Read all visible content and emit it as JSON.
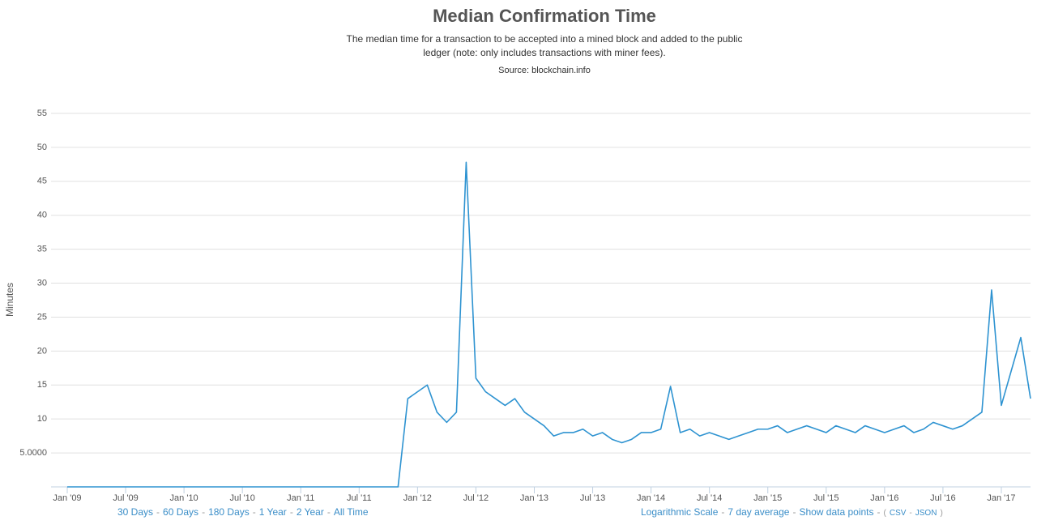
{
  "chart_data": {
    "type": "line",
    "title": "Median Confirmation Time",
    "subtitle": [
      "The median time for a transaction to be accepted into a mined block and added to the public",
      "ledger (note: only includes transactions with miner fees)."
    ],
    "source": "Source: blockchain.info",
    "y_label": "Minutes",
    "color": "#2e93d1",
    "grid": true,
    "x": [
      "2009-01",
      "2009-02",
      "2009-03",
      "2009-04",
      "2009-05",
      "2009-06",
      "2009-07",
      "2009-08",
      "2009-09",
      "2009-10",
      "2009-11",
      "2009-12",
      "2010-01",
      "2010-02",
      "2010-03",
      "2010-04",
      "2010-05",
      "2010-06",
      "2010-07",
      "2010-08",
      "2010-09",
      "2010-10",
      "2010-11",
      "2010-12",
      "2011-01",
      "2011-02",
      "2011-03",
      "2011-04",
      "2011-05",
      "2011-06",
      "2011-07",
      "2011-08",
      "2011-09",
      "2011-10",
      "2011-11",
      "2011-12",
      "2012-01",
      "2012-02",
      "2012-03",
      "2012-04",
      "2012-05",
      "2012-06",
      "2012-07",
      "2012-08",
      "2012-09",
      "2012-10",
      "2012-11",
      "2012-12",
      "2013-01",
      "2013-02",
      "2013-03",
      "2013-04",
      "2013-05",
      "2013-06",
      "2013-07",
      "2013-08",
      "2013-09",
      "2013-10",
      "2013-11",
      "2013-12",
      "2014-01",
      "2014-02",
      "2014-03",
      "2014-04",
      "2014-05",
      "2014-06",
      "2014-07",
      "2014-08",
      "2014-09",
      "2014-10",
      "2014-11",
      "2014-12",
      "2015-01",
      "2015-02",
      "2015-03",
      "2015-04",
      "2015-05",
      "2015-06",
      "2015-07",
      "2015-08",
      "2015-09",
      "2015-10",
      "2015-11",
      "2015-12",
      "2016-01",
      "2016-02",
      "2016-03",
      "2016-04",
      "2016-05",
      "2016-06",
      "2016-07",
      "2016-08",
      "2016-09",
      "2016-10",
      "2016-11",
      "2016-12",
      "2017-01",
      "2017-02",
      "2017-03",
      "2017-04"
    ],
    "values": [
      0,
      0,
      0,
      0,
      0,
      0,
      0,
      0,
      0,
      0,
      0,
      0,
      0,
      0,
      0,
      0,
      0,
      0,
      0,
      0,
      0,
      0,
      0,
      0,
      0,
      0,
      0,
      0,
      0,
      0,
      0,
      0,
      0,
      0,
      0,
      13,
      14,
      15,
      11,
      9.5,
      11,
      47.8,
      16,
      14,
      13,
      12,
      13,
      11,
      10,
      9,
      7.5,
      8,
      8,
      8.5,
      7.5,
      8,
      7,
      6.5,
      7,
      8,
      8,
      8.5,
      14.8,
      8,
      8.5,
      7.5,
      8,
      7.5,
      7,
      7.5,
      8,
      8.5,
      8.5,
      9,
      8,
      8.5,
      9,
      8.5,
      8,
      9,
      8.5,
      8,
      9,
      8.5,
      8,
      8.5,
      9,
      8,
      8.5,
      9.5,
      9,
      8.5,
      9,
      10,
      11,
      29,
      12,
      17,
      22,
      13
    ],
    "xlim": [
      "2009-01",
      "2017-04"
    ],
    "xticks": [
      {
        "value": "2009-01",
        "label": "Jan '09"
      },
      {
        "value": "2009-07",
        "label": "Jul '09"
      },
      {
        "value": "2010-01",
        "label": "Jan '10"
      },
      {
        "value": "2010-07",
        "label": "Jul '10"
      },
      {
        "value": "2011-01",
        "label": "Jan '11"
      },
      {
        "value": "2011-07",
        "label": "Jul '11"
      },
      {
        "value": "2012-01",
        "label": "Jan '12"
      },
      {
        "value": "2012-07",
        "label": "Jul '12"
      },
      {
        "value": "2013-01",
        "label": "Jan '13"
      },
      {
        "value": "2013-07",
        "label": "Jul '13"
      },
      {
        "value": "2014-01",
        "label": "Jan '14"
      },
      {
        "value": "2014-07",
        "label": "Jul '14"
      },
      {
        "value": "2015-01",
        "label": "Jan '15"
      },
      {
        "value": "2015-07",
        "label": "Jul '15"
      },
      {
        "value": "2016-01",
        "label": "Jan '16"
      },
      {
        "value": "2016-07",
        "label": "Jul '16"
      },
      {
        "value": "2017-01",
        "label": "Jan '17"
      }
    ],
    "ylim": [
      0,
      55
    ],
    "yticks": [
      {
        "value": 5,
        "label": "5.0000"
      },
      10,
      15,
      20,
      25,
      30,
      35,
      40,
      45,
      50,
      55
    ],
    "range_links": [
      "30 Days",
      "60 Days",
      "180 Days",
      "1 Year",
      "2 Year",
      "All Time"
    ],
    "option_links": [
      "Logarithmic Scale",
      "7 day average",
      "Show data points"
    ],
    "separator": "-",
    "export": {
      "open": "(",
      "links": [
        "CSV",
        "JSON"
      ],
      "close": ")"
    }
  }
}
